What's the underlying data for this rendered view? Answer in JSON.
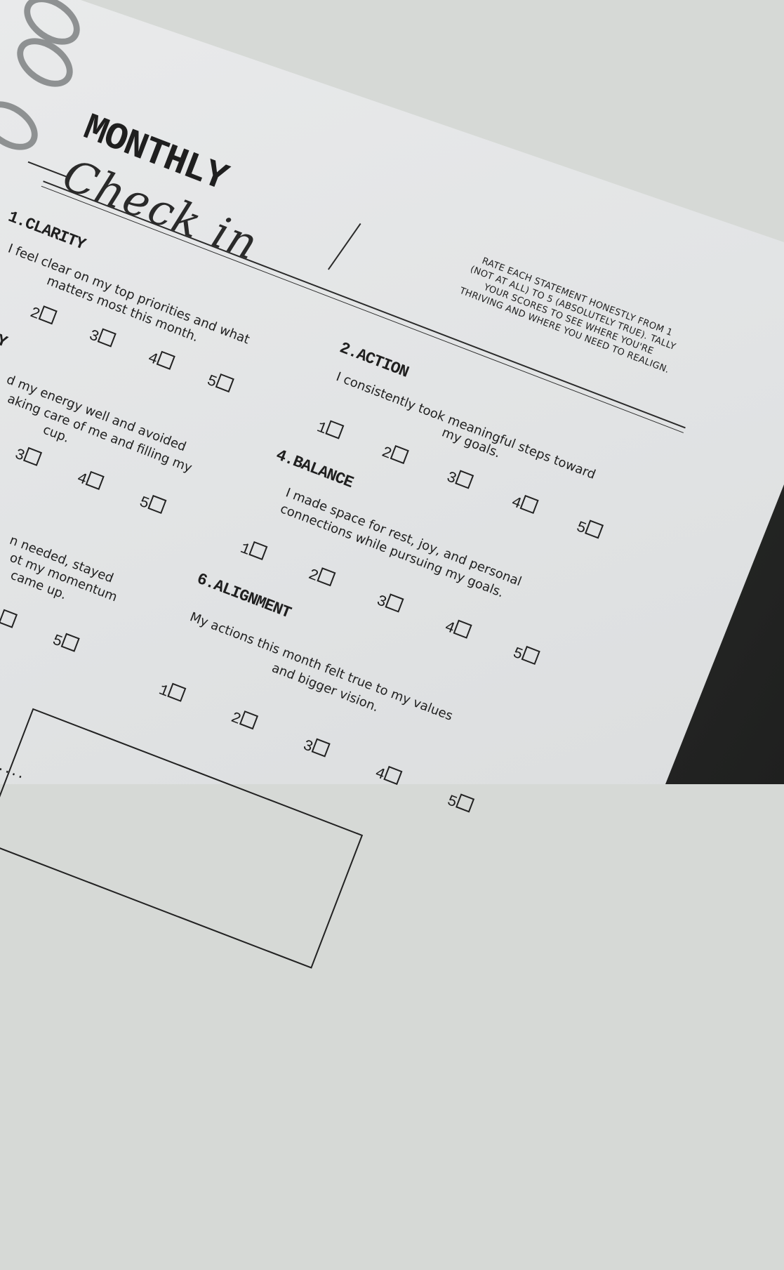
{
  "header": {
    "title": "MONTHLY",
    "subtitle": "Check in",
    "instructions": [
      "RATE EACH STATEMENT HONESTLY FROM 1",
      "(NOT AT ALL) TO 5 (ABSOLUTELY TRUE). TALLY",
      "YOUR SCORES TO SEE WHERE YOU'RE",
      "THRIVING AND WHERE YOU NEED TO REALIGN."
    ]
  },
  "sections": {
    "clarity": {
      "heading": "1.CLARITY",
      "lines": [
        "I feel clear on my top priorities and what",
        "matters most this month."
      ]
    },
    "action": {
      "heading": "2.ACTION",
      "lines": [
        "I consistently took meaningful steps toward",
        "my goals."
      ]
    },
    "energy": {
      "heading": "Y",
      "lines": [
        "d my energy well and avoided",
        "aking care of me and filling my",
        "cup."
      ]
    },
    "balance": {
      "heading": "4.BALANCE",
      "lines": [
        "I made space for rest, joy, and personal",
        "connections while pursuing my goals."
      ]
    },
    "resilience": {
      "lines": [
        "n needed, stayed",
        "ot my momentum",
        "came up."
      ]
    },
    "alignment": {
      "heading": "6.ALIGNMENT",
      "lines": [
        "My actions this month felt true to my values",
        "and bigger vision."
      ]
    }
  },
  "scale": [
    "1",
    "2",
    "3",
    "4",
    "5"
  ],
  "footer": {
    "dots": "....."
  }
}
